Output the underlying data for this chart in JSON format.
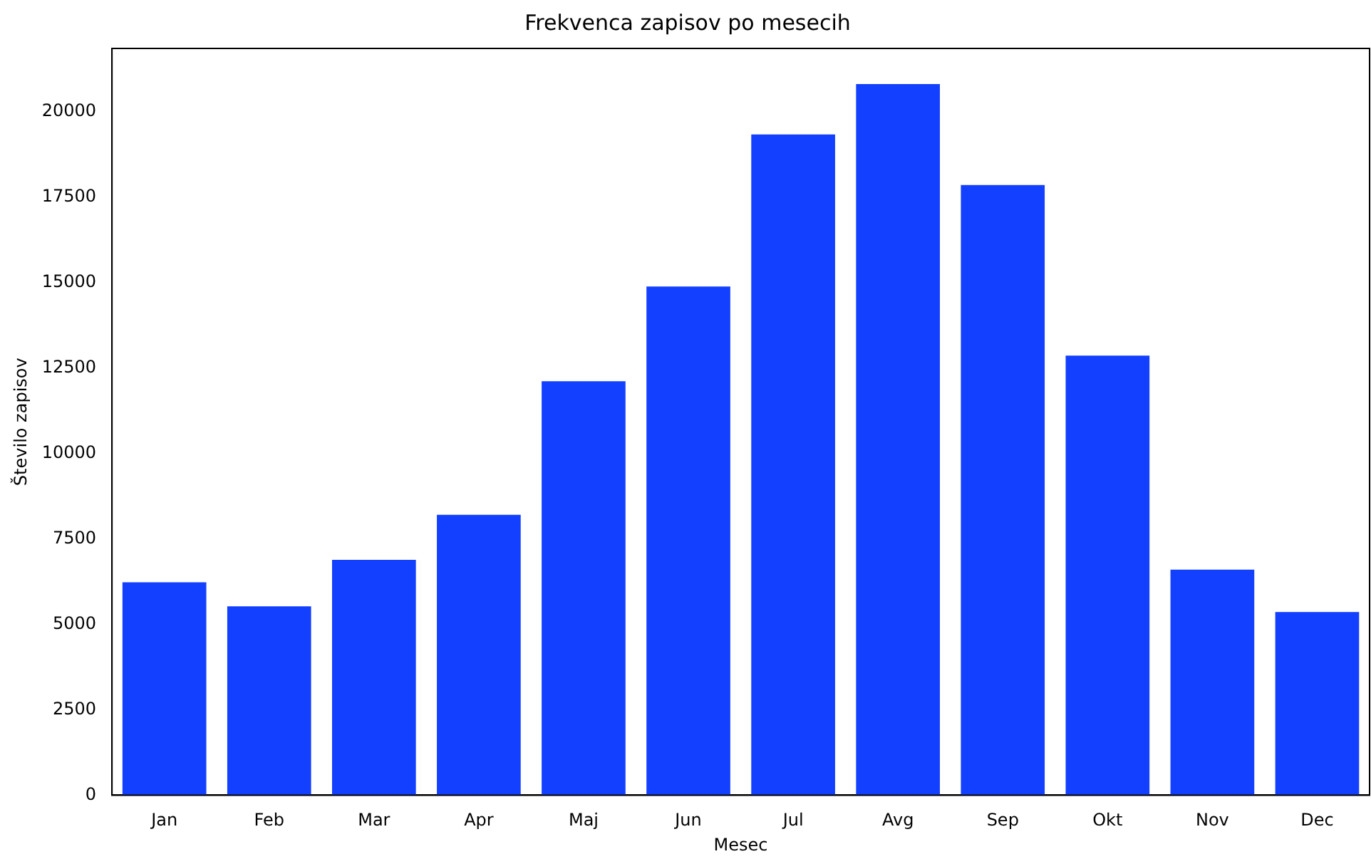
{
  "chart_data": {
    "type": "bar",
    "title": "Frekvenca zapisov po mesecih",
    "xlabel": "Mesec",
    "ylabel": "Število zapisov",
    "categories": [
      "Jan",
      "Feb",
      "Mar",
      "Apr",
      "Maj",
      "Jun",
      "Jul",
      "Avg",
      "Sep",
      "Okt",
      "Nov",
      "Dec"
    ],
    "values": [
      6230,
      5530,
      6890,
      8210,
      12120,
      14890,
      19340,
      20820,
      17860,
      12870,
      6600,
      5360
    ],
    "color": "#1340ff",
    "ylim": [
      0,
      21860
    ],
    "yticks": [
      0,
      2500,
      5000,
      7500,
      10000,
      12500,
      15000,
      17500,
      20000
    ],
    "grid": false
  }
}
